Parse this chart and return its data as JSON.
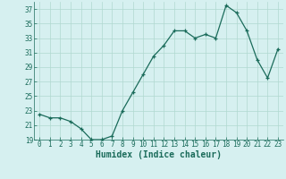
{
  "x": [
    0,
    1,
    2,
    3,
    4,
    5,
    6,
    7,
    8,
    9,
    10,
    11,
    12,
    13,
    14,
    15,
    16,
    17,
    18,
    19,
    20,
    21,
    22,
    23
  ],
  "y": [
    22.5,
    22.0,
    22.0,
    21.5,
    20.5,
    19.0,
    19.0,
    19.5,
    23.0,
    25.5,
    28.0,
    30.5,
    32.0,
    34.0,
    34.0,
    33.0,
    33.5,
    33.0,
    37.5,
    36.5,
    34.0,
    30.0,
    27.5,
    31.5
  ],
  "line_color": "#1a6b5a",
  "marker": "+",
  "bg_color": "#d6f0f0",
  "grid_color": "#b0d8d0",
  "xlabel": "Humidex (Indice chaleur)",
  "ylim": [
    19,
    38
  ],
  "yticks": [
    19,
    21,
    23,
    25,
    27,
    29,
    31,
    33,
    35,
    37
  ],
  "xticks": [
    0,
    1,
    2,
    3,
    4,
    5,
    6,
    7,
    8,
    9,
    10,
    11,
    12,
    13,
    14,
    15,
    16,
    17,
    18,
    19,
    20,
    21,
    22,
    23
  ],
  "tick_fontsize": 5.5,
  "xlabel_fontsize": 7,
  "line_width": 0.9,
  "marker_size": 3.5,
  "marker_edge_width": 0.9
}
